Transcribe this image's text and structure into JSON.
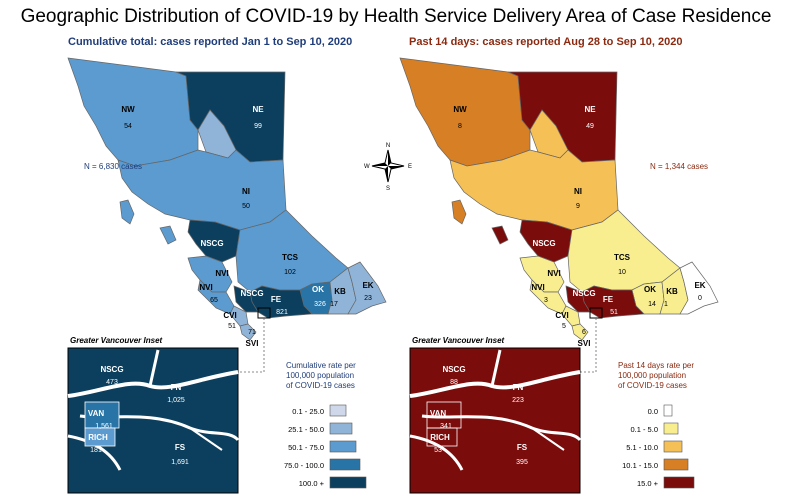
{
  "title": "Geographic Distribution of COVID-19 by Health Service Delivery Area of Case Residence",
  "colors": {
    "left_title": "#1f3d7a",
    "right_title": "#8b2a10",
    "blue": [
      "#cfd8ea",
      "#8fb4d8",
      "#5b9bd0",
      "#2874a6",
      "#0c3f5e"
    ],
    "orange": [
      "#ffffff",
      "#f9ee8f",
      "#f5c056",
      "#d67f24",
      "#7a0c0c"
    ]
  },
  "left": {
    "subtitle": "Cumulative total: cases reported Jan 1 to Sep 10, 2020",
    "n_total": "N = 6,830 cases",
    "regions": [
      {
        "code": "NW",
        "value": "54"
      },
      {
        "code": "NE",
        "value": "99"
      },
      {
        "code": "NI",
        "value": "50"
      },
      {
        "code": "NSCG",
        "value": ""
      },
      {
        "code": "TCS",
        "value": "102"
      },
      {
        "code": "NVI",
        "value": ""
      },
      {
        "code": "CVI",
        "value": "51"
      },
      {
        "code": "NSCG",
        "value": ""
      },
      {
        "code": "FE",
        "value": "821"
      },
      {
        "code": "OK",
        "value": "326"
      },
      {
        "code": "KB",
        "value": "17"
      },
      {
        "code": "EK",
        "value": "23"
      },
      {
        "code": "SVI",
        "value": "71"
      },
      {
        "code": "NVI",
        "value": "65"
      }
    ],
    "inset_title": "Greater Vancouver Inset",
    "inset": [
      {
        "code": "NSCG",
        "value": "473"
      },
      {
        "code": "FN",
        "value": "1,025"
      },
      {
        "code": "VAN",
        "value": "1,561"
      },
      {
        "code": "RICH",
        "value": "181"
      },
      {
        "code": "FS",
        "value": "1,691"
      }
    ],
    "legend_title": [
      "Cumulative rate per",
      "100,000 population",
      "of COVID-19 cases"
    ],
    "legend": [
      "0.1 - 25.0",
      "25.1 - 50.0",
      "50.1 - 75.0",
      "75.0 - 100.0",
      "100.0 +"
    ]
  },
  "right": {
    "subtitle": "Past 14 days: cases reported Aug 28 to Sep 10, 2020",
    "n_total": "N = 1,344 cases",
    "regions": [
      {
        "code": "NW",
        "value": "8"
      },
      {
        "code": "NE",
        "value": "49"
      },
      {
        "code": "NI",
        "value": "9"
      },
      {
        "code": "NSCG",
        "value": ""
      },
      {
        "code": "TCS",
        "value": "10"
      },
      {
        "code": "NVI",
        "value": ""
      },
      {
        "code": "CVI",
        "value": "5"
      },
      {
        "code": "NSCG",
        "value": ""
      },
      {
        "code": "FE",
        "value": "51"
      },
      {
        "code": "OK",
        "value": "14"
      },
      {
        "code": "KB",
        "value": "1"
      },
      {
        "code": "EK",
        "value": "0"
      },
      {
        "code": "SVI",
        "value": "6"
      },
      {
        "code": "NVI",
        "value": "3"
      }
    ],
    "inset_title": "Greater Vancouver Inset",
    "inset": [
      {
        "code": "NSCG",
        "value": "88"
      },
      {
        "code": "FN",
        "value": "223"
      },
      {
        "code": "VAN",
        "value": "341"
      },
      {
        "code": "RICH",
        "value": "53"
      },
      {
        "code": "FS",
        "value": "395"
      }
    ],
    "legend_title": [
      "Past 14 days rate per",
      "100,000 population",
      "of COVID-19 cases"
    ],
    "legend": [
      "0.0",
      "0.1 - 5.0",
      "5.1 - 10.0",
      "10.1 - 15.0",
      "15.0 +"
    ]
  },
  "compass": {
    "n": "N",
    "e": "E",
    "s": "S",
    "w": "W"
  }
}
